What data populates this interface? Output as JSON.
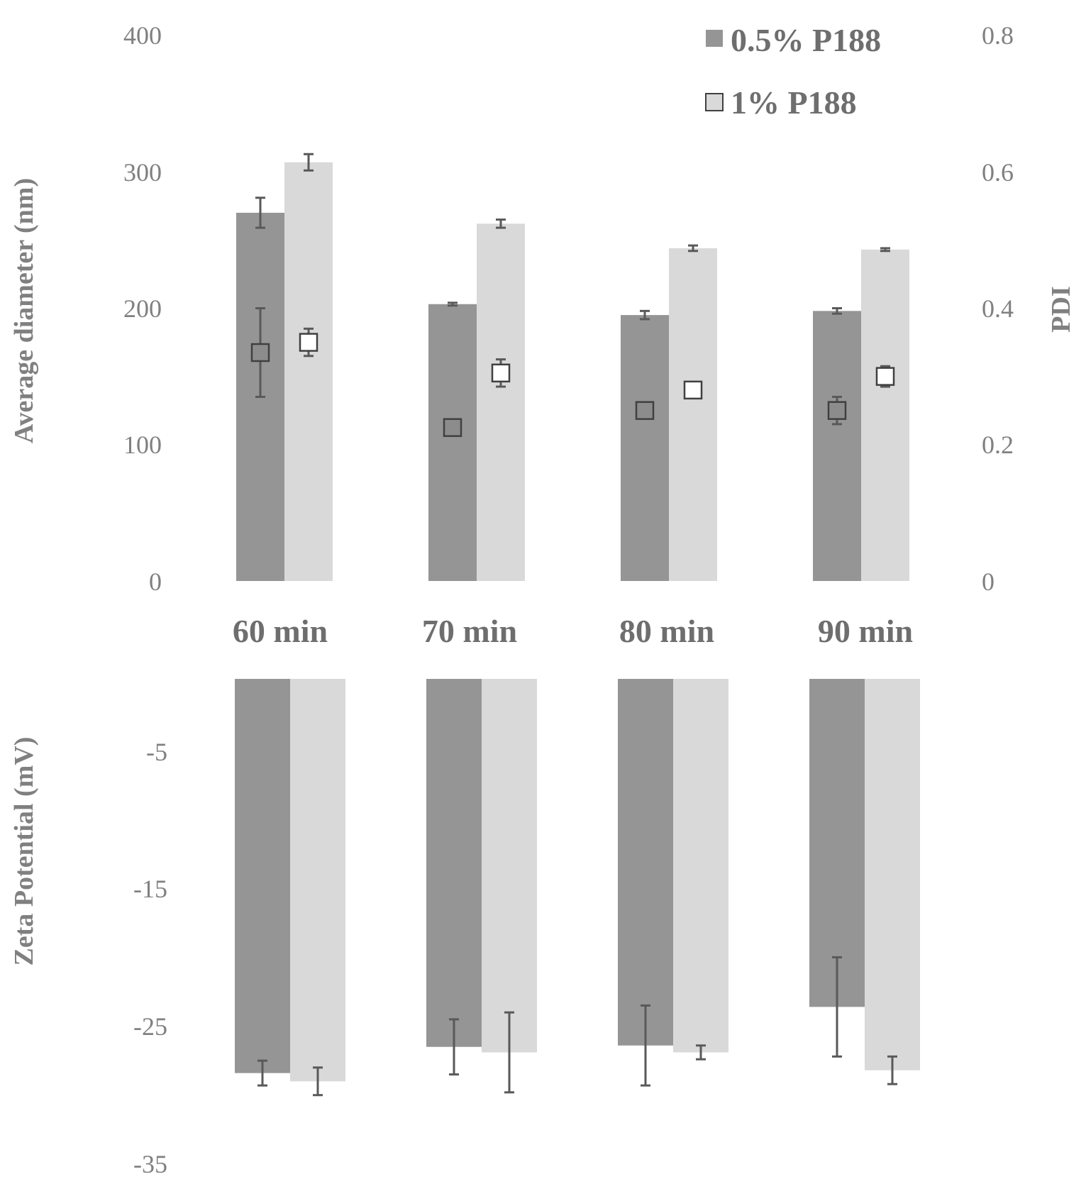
{
  "colors": {
    "series_dark": "#959595",
    "series_light": "#d9d9d9",
    "marker_dark": "#8c8c8c",
    "marker_light": "#ffffff",
    "error_bar": "#595959"
  },
  "chart_data": [
    {
      "type": "bar",
      "panel": "top",
      "categories": [
        "60 min",
        "70 min",
        "80 min",
        "90 min"
      ],
      "ylabel": "Average diameter (nm)",
      "ylim": [
        0,
        400
      ],
      "yticks": [
        "0",
        "100",
        "200",
        "300",
        "400"
      ],
      "y2label": "PDI",
      "y2lim": [
        0,
        0.8
      ],
      "y2ticks": [
        "0",
        "0.2",
        "0.4",
        "0.6",
        "0.8"
      ],
      "grid": false,
      "legend_position": "top-right",
      "series": [
        {
          "name": "0.5% P188",
          "values": [
            270,
            203,
            195,
            198
          ],
          "errors": [
            11,
            1,
            3,
            2
          ],
          "pdi": [
            0.335,
            0.225,
            0.25,
            0.25
          ],
          "pdi_errors": [
            0.065,
            0,
            0.005,
            0.02
          ]
        },
        {
          "name": "1% P188",
          "values": [
            307,
            262,
            244,
            243
          ],
          "errors": [
            6,
            3,
            2,
            1
          ],
          "pdi": [
            0.35,
            0.305,
            0.28,
            0.3
          ],
          "pdi_errors": [
            0.02,
            0.02,
            0,
            0.015
          ]
        }
      ]
    },
    {
      "type": "bar",
      "panel": "bottom",
      "categories": [
        "60 min",
        "70 min",
        "80 min",
        "90 min"
      ],
      "ylabel": "Zeta Potential (mV)",
      "ylim": [
        -35,
        0
      ],
      "yticks": [
        "-5",
        "-15",
        "-25",
        "-35"
      ],
      "grid": false,
      "series": [
        {
          "name": "0.5% P188",
          "values": [
            -28.6,
            -26.7,
            -26.6,
            -23.8
          ],
          "errors": [
            0.9,
            2.0,
            2.9,
            3.6
          ]
        },
        {
          "name": "1% P188",
          "values": [
            -29.2,
            -27.1,
            -27.1,
            -28.4
          ],
          "errors": [
            1.0,
            2.9,
            0.5,
            1.0
          ]
        }
      ]
    }
  ]
}
